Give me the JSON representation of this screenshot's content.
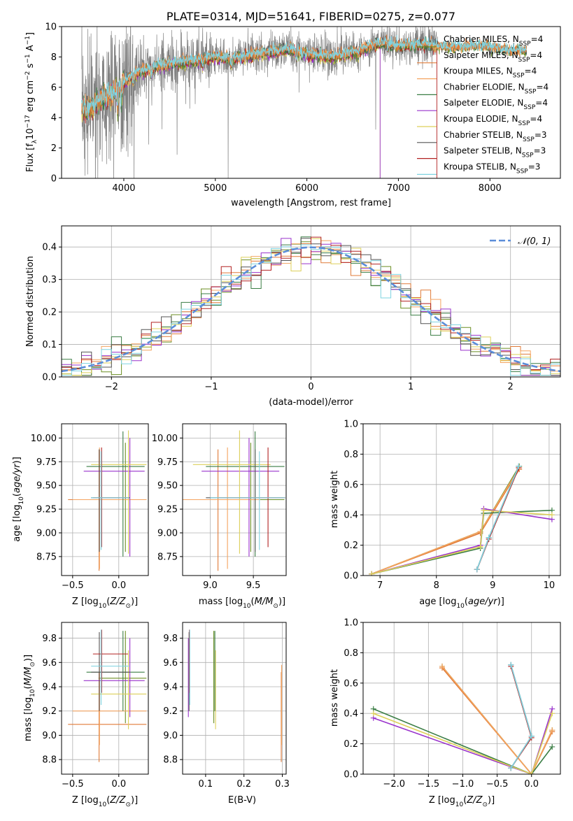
{
  "colors": {
    "Chabrier MILES": "#6b8e23",
    "Salpeter MILES": "#e07b39",
    "Kroupa MILES": "#f4a460",
    "Chabrier ELODIE": "#3a7d44",
    "Salpeter ELODIE": "#9932cc",
    "Kroupa ELODIE": "#ddd05a",
    "Chabrier STELIB": "#555555",
    "Salpeter STELIB": "#b22222",
    "Kroupa STELIB": "#7ed3e0",
    "data": "#808080",
    "gauss": "#5b8dd9"
  },
  "chart_data": [
    {
      "id": "spectrum",
      "type": "line",
      "title": "PLATE=0314, MJD=51641, FIBERID=0275, z=0.077",
      "xlabel": "wavelength [Angstrom, rest frame]",
      "ylabel": "Flux [f_λ10^-17 erg cm^-2 s^-1 A^-1]",
      "xlim": [
        3320,
        8770
      ],
      "ylim": [
        0,
        10
      ],
      "xticks": [
        4000,
        5000,
        6000,
        7000,
        8000
      ],
      "yticks": [
        0,
        2,
        4,
        6,
        8,
        10
      ],
      "legend_position": "top-right",
      "legend": [
        {
          "name": "Chabrier MILES",
          "sub": "4"
        },
        {
          "name": "Salpeter MILES",
          "sub": "4"
        },
        {
          "name": "Kroupa MILES",
          "sub": "4"
        },
        {
          "name": "Chabrier ELODIE",
          "sub": "4"
        },
        {
          "name": "Salpeter ELODIE",
          "sub": "4"
        },
        {
          "name": "Kroupa ELODIE",
          "sub": "4"
        },
        {
          "name": "Chabrier STELIB",
          "sub": "3"
        },
        {
          "name": "Salpeter STELIB",
          "sub": "3"
        },
        {
          "name": "Kroupa STELIB",
          "sub": "3"
        }
      ],
      "model_continuum": [
        [
          3540,
          4.8
        ],
        [
          3600,
          4.4
        ],
        [
          3700,
          4.9
        ],
        [
          3800,
          5.4
        ],
        [
          3900,
          5.7
        ],
        [
          4000,
          6.3
        ],
        [
          4100,
          6.8
        ],
        [
          4300,
          7.3
        ],
        [
          4500,
          7.5
        ],
        [
          4800,
          7.8
        ],
        [
          5000,
          8.0
        ],
        [
          5200,
          7.9
        ],
        [
          5500,
          8.2
        ],
        [
          5800,
          8.5
        ],
        [
          6000,
          8.2
        ],
        [
          6300,
          8.0
        ],
        [
          6563,
          8.4
        ],
        [
          6800,
          8.9
        ],
        [
          7000,
          8.7
        ],
        [
          7300,
          8.8
        ],
        [
          7600,
          8.6
        ],
        [
          7900,
          8.7
        ],
        [
          8200,
          8.4
        ],
        [
          8400,
          8.4
        ]
      ],
      "cutoffs": [
        {
          "name": "Salpeter ELODIE",
          "x": 6800
        },
        {
          "name": "Kroupa ELODIE",
          "x": 6800
        },
        {
          "name": "Salpeter STELIB",
          "x": 7420
        }
      ]
    },
    {
      "id": "residuals",
      "type": "histogram",
      "xlabel": "(data-model)/error",
      "ylabel": "Normed distribution",
      "xlim": [
        -2.5,
        2.5
      ],
      "ylim": [
        0,
        0.465
      ],
      "xticks": [
        -2,
        -1,
        0,
        1,
        2
      ],
      "yticks": [
        0.0,
        0.1,
        0.2,
        0.3,
        0.4
      ],
      "grid": true,
      "legend_position": "top-right",
      "gauss_label": "𝒩(0, 1)",
      "bin_width": 0.1
    },
    {
      "id": "age_vs_Z",
      "type": "errorbar",
      "xlabel": "Z [log10(Z/Z⊙)]",
      "ylabel": "age [log10(age/yr)]",
      "xlim": [
        -0.62,
        0.32
      ],
      "ylim": [
        8.55,
        10.15
      ],
      "xticks": [
        -0.5,
        0.0
      ],
      "yticks": [
        8.75,
        9.0,
        9.25,
        9.5,
        9.75,
        10.0
      ],
      "grid": true
    },
    {
      "id": "age_vs_mass",
      "type": "errorbar",
      "xlabel": "mass [log10(M/M⊙)]",
      "ylabel": "",
      "xlim": [
        8.68,
        9.88
      ],
      "ylim": [
        8.55,
        10.15
      ],
      "xticks": [
        9.0,
        9.5
      ],
      "yticks": [
        8.75,
        9.0,
        9.25,
        9.5,
        9.75,
        10.0
      ],
      "grid": true
    },
    {
      "id": "weight_vs_age",
      "type": "line",
      "xlabel": "age [log10(age/yr)]",
      "ylabel": "mass weight",
      "xlim": [
        6.7,
        10.2
      ],
      "ylim": [
        0,
        1
      ],
      "xticks": [
        7,
        8,
        9,
        10
      ],
      "yticks": [
        0.0,
        0.2,
        0.4,
        0.6,
        0.8,
        1.0
      ],
      "grid": true
    },
    {
      "id": "mass_vs_Z",
      "type": "errorbar",
      "xlabel": "Z [log10(Z/Z⊙)]",
      "ylabel": "mass [log10(M/M⊙)]",
      "xlim": [
        -0.62,
        0.32
      ],
      "ylim": [
        8.68,
        9.93
      ],
      "xticks": [
        -0.5,
        0.0
      ],
      "yticks": [
        8.8,
        9.0,
        9.2,
        9.4,
        9.6,
        9.8
      ],
      "grid": true
    },
    {
      "id": "mass_vs_ebv",
      "type": "errorbar",
      "xlabel": "E(B-V)",
      "ylabel": "",
      "xlim": [
        0.04,
        0.31
      ],
      "ylim": [
        8.68,
        9.93
      ],
      "xticks": [
        0.1,
        0.2,
        0.3
      ],
      "yticks": [
        8.8,
        9.0,
        9.2,
        9.4,
        9.6,
        9.8
      ],
      "grid": true
    },
    {
      "id": "weight_vs_Z",
      "type": "line",
      "xlabel": "Z [log10(Z/Z⊙)]",
      "ylabel": "mass weight",
      "xlim": [
        -2.45,
        0.42
      ],
      "ylim": [
        0,
        1
      ],
      "xticks": [
        -2.0,
        -1.5,
        -1.0,
        -0.5,
        0.0
      ],
      "yticks": [
        0.0,
        0.2,
        0.4,
        0.6,
        0.8,
        1.0
      ],
      "grid": true
    }
  ],
  "fits": [
    {
      "name": "Chabrier MILES",
      "age": 9.35,
      "ageLo": 8.8,
      "ageHi": 9.95,
      "Z": 0.09,
      "ZLo": -0.22,
      "ZHi": 0.3,
      "mass": 9.47,
      "massLo": 9.1,
      "massHi": 9.86,
      "ebv": 0.125,
      "weights": [
        [
          6.85,
          0.01
        ],
        [
          8.78,
          0.29
        ],
        [
          9.47,
          0.72
        ]
      ],
      "zweights": [
        [
          -1.3,
          0.71
        ],
        [
          0.0,
          0.0
        ],
        [
          0.3,
          0.29
        ]
      ]
    },
    {
      "name": "Salpeter MILES",
      "age": 9.35,
      "ageLo": 8.6,
      "ageHi": 9.88,
      "Z": -0.2,
      "ZLo": -0.55,
      "ZHi": 0.3,
      "mass": 9.09,
      "massLo": 8.78,
      "massHi": 9.52,
      "ebv": 0.3,
      "weights": [
        [
          6.85,
          0.01
        ],
        [
          8.78,
          0.28
        ],
        [
          9.47,
          0.7
        ]
      ],
      "zweights": [
        [
          -1.3,
          0.7
        ],
        [
          0.0,
          0.0
        ],
        [
          0.3,
          0.28
        ]
      ]
    },
    {
      "name": "Kroupa MILES",
      "age": 9.35,
      "ageLo": 8.62,
      "ageHi": 9.9,
      "Z": -0.2,
      "ZLo": -0.5,
      "ZHi": 0.3,
      "mass": 9.2,
      "massLo": 8.92,
      "massHi": 9.58,
      "ebv": 0.3,
      "weights": [
        [
          6.85,
          0.01
        ],
        [
          8.78,
          0.29
        ],
        [
          9.47,
          0.71
        ]
      ],
      "zweights": [
        [
          -1.3,
          0.71
        ],
        [
          0.0,
          0.0
        ],
        [
          0.3,
          0.29
        ]
      ]
    },
    {
      "name": "Chabrier ELODIE",
      "age": 9.7,
      "ageLo": 8.75,
      "ageHi": 10.07,
      "Z": 0.05,
      "ZLo": -0.35,
      "ZHi": 0.28,
      "mass": 9.52,
      "massLo": 9.2,
      "massHi": 9.86,
      "ebv": 0.125,
      "weights": [
        [
          6.85,
          0.01
        ],
        [
          8.78,
          0.18
        ],
        [
          8.84,
          0.41
        ],
        [
          10.05,
          0.43
        ]
      ],
      "zweights": [
        [
          -2.3,
          0.43
        ],
        [
          0.0,
          0.0
        ],
        [
          0.3,
          0.18
        ]
      ]
    },
    {
      "name": "Salpeter ELODIE",
      "age": 9.65,
      "ageLo": 8.75,
      "ageHi": 10.0,
      "Z": 0.12,
      "ZLo": -0.38,
      "ZHi": 0.28,
      "mass": 9.45,
      "massLo": 9.15,
      "massHi": 9.8,
      "ebv": 0.055,
      "weights": [
        [
          6.85,
          0.01
        ],
        [
          8.78,
          0.2
        ],
        [
          8.84,
          0.44
        ],
        [
          10.05,
          0.37
        ]
      ],
      "zweights": [
        [
          -2.3,
          0.37
        ],
        [
          0.0,
          0.0
        ],
        [
          0.3,
          0.43
        ]
      ]
    },
    {
      "name": "Kroupa ELODIE",
      "age": 9.72,
      "ageLo": 8.78,
      "ageHi": 10.08,
      "Z": 0.1,
      "ZLo": -0.3,
      "ZHi": 0.3,
      "mass": 9.34,
      "massLo": 9.05,
      "massHi": 9.7,
      "ebv": 0.125,
      "weights": [
        [
          6.85,
          0.01
        ],
        [
          8.78,
          0.19
        ],
        [
          8.84,
          0.43
        ],
        [
          10.05,
          0.4
        ]
      ],
      "zweights": [
        [
          -2.3,
          0.4
        ],
        [
          0.0,
          0.0
        ],
        [
          0.3,
          0.4
        ]
      ]
    },
    {
      "name": "Chabrier STELIB",
      "age": 9.37,
      "ageLo": 8.8,
      "ageHi": 9.88,
      "Z": -0.22,
      "ZLo": -0.3,
      "ZHi": 0.12,
      "mass": 9.52,
      "massLo": 9.2,
      "massHi": 9.85,
      "ebv": 0.055,
      "weights": [
        [
          8.72,
          0.04
        ],
        [
          8.93,
          0.25
        ],
        [
          9.46,
          0.72
        ]
      ],
      "zweights": [
        [
          -0.3,
          0.04
        ],
        [
          0.0,
          0.25
        ],
        [
          -0.3,
          0.72
        ]
      ]
    },
    {
      "name": "Salpeter STELIB",
      "age": 9.37,
      "ageLo": 8.85,
      "ageHi": 9.9,
      "Z": -0.2,
      "ZLo": -0.28,
      "ZHi": 0.1,
      "mass": 9.67,
      "massLo": 9.35,
      "massHi": 9.87,
      "ebv": 0.055,
      "weights": [
        [
          8.72,
          0.04
        ],
        [
          8.93,
          0.24
        ],
        [
          9.46,
          0.71
        ]
      ],
      "zweights": [
        [
          -0.3,
          0.04
        ],
        [
          0.0,
          0.24
        ],
        [
          -0.3,
          0.71
        ]
      ]
    },
    {
      "name": "Kroupa STELIB",
      "age": 9.37,
      "ageLo": 8.82,
      "ageHi": 9.86,
      "Z": -0.21,
      "ZLo": -0.3,
      "ZHi": 0.11,
      "mass": 9.57,
      "massLo": 9.25,
      "massHi": 9.87,
      "ebv": 0.055,
      "weights": [
        [
          8.72,
          0.04
        ],
        [
          8.93,
          0.25
        ],
        [
          9.46,
          0.72
        ]
      ],
      "zweights": [
        [
          -0.3,
          0.04
        ],
        [
          0.0,
          0.25
        ],
        [
          -0.3,
          0.72
        ]
      ]
    }
  ]
}
